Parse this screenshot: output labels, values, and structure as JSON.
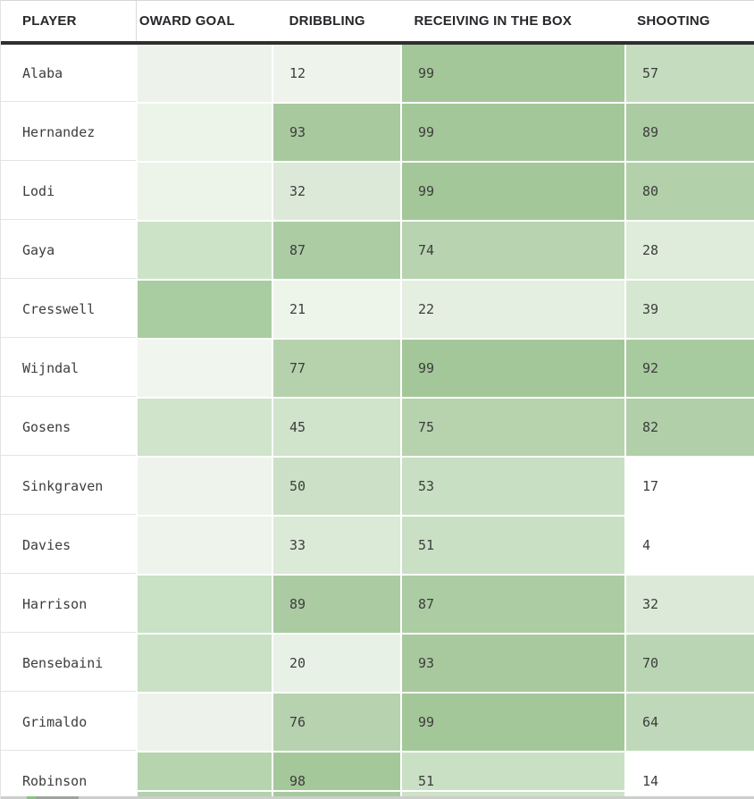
{
  "table": {
    "columns": [
      {
        "id": "player",
        "label": "PLAYER"
      },
      {
        "id": "oward_goal",
        "label": "OWARD GOAL"
      },
      {
        "id": "dribbling",
        "label": "DRIBBLING"
      },
      {
        "id": "receiving_in_the_box",
        "label": "RECEIVING IN THE BOX"
      },
      {
        "id": "shooting",
        "label": "SHOOTING"
      }
    ],
    "rows": [
      {
        "player": "Alaba",
        "cells": [
          {
            "col": "oward_goal",
            "value": "",
            "color": "#edf3ea"
          },
          {
            "col": "dribbling",
            "value": "12",
            "color": "#eef4ec"
          },
          {
            "col": "receiving_in_the_box",
            "value": "99",
            "color": "#a4c799"
          },
          {
            "col": "shooting",
            "value": "57",
            "color": "#c5dcbf"
          }
        ]
      },
      {
        "player": "Hernandez",
        "cells": [
          {
            "col": "oward_goal",
            "value": "",
            "color": "#ecf3e9"
          },
          {
            "col": "dribbling",
            "value": "93",
            "color": "#a8c99e"
          },
          {
            "col": "receiving_in_the_box",
            "value": "99",
            "color": "#a4c799"
          },
          {
            "col": "shooting",
            "value": "89",
            "color": "#abcba2"
          }
        ]
      },
      {
        "player": "Lodi",
        "cells": [
          {
            "col": "oward_goal",
            "value": "",
            "color": "#ecf3e9"
          },
          {
            "col": "dribbling",
            "value": "32",
            "color": "#dce9d8"
          },
          {
            "col": "receiving_in_the_box",
            "value": "99",
            "color": "#a4c799"
          },
          {
            "col": "shooting",
            "value": "80",
            "color": "#b2d0aa"
          }
        ]
      },
      {
        "player": "Gaya",
        "cells": [
          {
            "col": "oward_goal",
            "value": "",
            "color": "#cde3c8"
          },
          {
            "col": "dribbling",
            "value": "87",
            "color": "#accca4"
          },
          {
            "col": "receiving_in_the_box",
            "value": "74",
            "color": "#b7d3af"
          },
          {
            "col": "shooting",
            "value": "28",
            "color": "#dfebdb"
          }
        ]
      },
      {
        "player": "Cresswell",
        "cells": [
          {
            "col": "oward_goal",
            "value": "",
            "color": "#a9cda0"
          },
          {
            "col": "dribbling",
            "value": "21",
            "color": "#edf4ea"
          },
          {
            "col": "receiving_in_the_box",
            "value": "22",
            "color": "#e4eee1"
          },
          {
            "col": "shooting",
            "value": "39",
            "color": "#d5e6d1"
          }
        ]
      },
      {
        "player": "Wijndal",
        "cells": [
          {
            "col": "oward_goal",
            "value": "",
            "color": "#f0f5ee"
          },
          {
            "col": "dribbling",
            "value": "77",
            "color": "#b5d2ad"
          },
          {
            "col": "receiving_in_the_box",
            "value": "99",
            "color": "#a4c799"
          },
          {
            "col": "shooting",
            "value": "92",
            "color": "#a8ca9f"
          }
        ]
      },
      {
        "player": "Gosens",
        "cells": [
          {
            "col": "oward_goal",
            "value": "",
            "color": "#cfe4ca"
          },
          {
            "col": "dribbling",
            "value": "45",
            "color": "#d0e3cb"
          },
          {
            "col": "receiving_in_the_box",
            "value": "75",
            "color": "#b6d3ae"
          },
          {
            "col": "shooting",
            "value": "82",
            "color": "#b1cfa8"
          }
        ]
      },
      {
        "player": "Sinkgraven",
        "cells": [
          {
            "col": "oward_goal",
            "value": "",
            "color": "#eef4eb"
          },
          {
            "col": "dribbling",
            "value": "50",
            "color": "#cbe0c6"
          },
          {
            "col": "receiving_in_the_box",
            "value": "53",
            "color": "#c9dfc3"
          },
          {
            "col": "shooting",
            "value": "17",
            "color": "#ffffff"
          }
        ]
      },
      {
        "player": "Davies",
        "cells": [
          {
            "col": "oward_goal",
            "value": "",
            "color": "#eef4eb"
          },
          {
            "col": "dribbling",
            "value": "33",
            "color": "#dbe9d7"
          },
          {
            "col": "receiving_in_the_box",
            "value": "51",
            "color": "#cae0c5"
          },
          {
            "col": "shooting",
            "value": "4",
            "color": "#ffffff"
          }
        ]
      },
      {
        "player": "Harrison",
        "cells": [
          {
            "col": "oward_goal",
            "value": "",
            "color": "#c9e1c4"
          },
          {
            "col": "dribbling",
            "value": "89",
            "color": "#abcba2"
          },
          {
            "col": "receiving_in_the_box",
            "value": "87",
            "color": "#accca4"
          },
          {
            "col": "shooting",
            "value": "32",
            "color": "#dce9d8"
          }
        ]
      },
      {
        "player": "Bensebaini",
        "cells": [
          {
            "col": "oward_goal",
            "value": "",
            "color": "#cbe1c5"
          },
          {
            "col": "dribbling",
            "value": "20",
            "color": "#e8f1e6"
          },
          {
            "col": "receiving_in_the_box",
            "value": "93",
            "color": "#a8c99e"
          },
          {
            "col": "shooting",
            "value": "70",
            "color": "#bad5b3"
          }
        ]
      },
      {
        "player": "Grimaldo",
        "cells": [
          {
            "col": "oward_goal",
            "value": "",
            "color": "#edf3ea"
          },
          {
            "col": "dribbling",
            "value": "76",
            "color": "#b6d2ae"
          },
          {
            "col": "receiving_in_the_box",
            "value": "99",
            "color": "#a4c799"
          },
          {
            "col": "shooting",
            "value": "64",
            "color": "#bfd8b9"
          }
        ]
      },
      {
        "player": "Robinson",
        "cells": [
          {
            "col": "oward_goal",
            "value": "",
            "color": "#b6d5ae"
          },
          {
            "col": "dribbling",
            "value": "98",
            "color": "#a5c89a"
          },
          {
            "col": "receiving_in_the_box",
            "value": "51",
            "color": "#cae0c5"
          },
          {
            "col": "shooting",
            "value": "14",
            "color": "#ffffff"
          }
        ]
      }
    ]
  },
  "partial_next_row": {
    "segments": [
      {
        "col": "player",
        "color": "#ffffff"
      },
      {
        "col": "oward_goal",
        "color": "#b2d3aa"
      },
      {
        "col": "dribbling",
        "color": "#a6ca9c"
      },
      {
        "col": "receiving_in_the_box",
        "color": "#cde2c7"
      },
      {
        "col": "shooting",
        "color": "#ffffff"
      }
    ]
  },
  "scrollbar": {
    "track_color": "#cbcecb",
    "thumb_color": "#9fa39e",
    "accent_color": "#8cc083"
  },
  "colors": {
    "header_text": "#27272b",
    "header_underline": "#2f2f2f",
    "body_text": "#3d3d3d",
    "row_divider": "#e4e4e4",
    "heat_low": "#ffffff",
    "heat_high": "#a4c799"
  },
  "chart_data": {
    "type": "heatmap",
    "rows": [
      "Alaba",
      "Hernandez",
      "Lodi",
      "Gaya",
      "Cresswell",
      "Wijndal",
      "Gosens",
      "Sinkgraven",
      "Davies",
      "Harrison",
      "Bensebaini",
      "Grimaldo",
      "Robinson"
    ],
    "columns": [
      "OWARD GOAL",
      "DRIBBLING",
      "RECEIVING IN THE BOX",
      "SHOOTING"
    ],
    "values": [
      [
        null,
        12,
        99,
        57
      ],
      [
        null,
        93,
        99,
        89
      ],
      [
        null,
        32,
        99,
        80
      ],
      [
        null,
        87,
        74,
        28
      ],
      [
        null,
        21,
        22,
        39
      ],
      [
        null,
        77,
        99,
        92
      ],
      [
        null,
        45,
        75,
        82
      ],
      [
        null,
        50,
        53,
        17
      ],
      [
        null,
        33,
        51,
        4
      ],
      [
        null,
        89,
        87,
        32
      ],
      [
        null,
        20,
        93,
        70
      ],
      [
        null,
        76,
        99,
        64
      ],
      [
        null,
        98,
        51,
        14
      ]
    ],
    "note_scale": "green intensity encodes value; OWARD GOAL column values not visible (clipped)"
  }
}
